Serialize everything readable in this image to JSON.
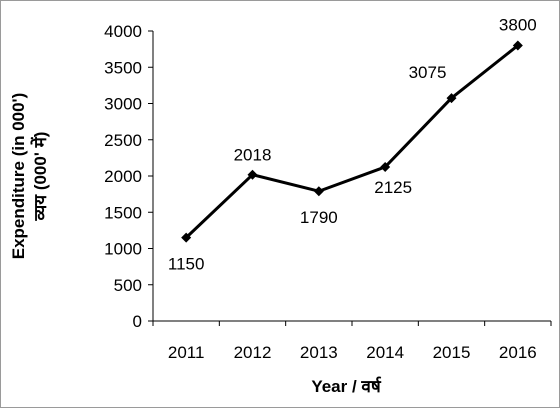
{
  "chart_data": {
    "type": "line",
    "categories": [
      "2011",
      "2012",
      "2013",
      "2014",
      "2015",
      "2016"
    ],
    "series": [
      {
        "values": [
          1150,
          2018,
          1790,
          2125,
          3075,
          3800
        ]
      }
    ],
    "data_labels": [
      "1150",
      "2018",
      "1790",
      "2125",
      "3075",
      "3800"
    ],
    "y_ticks": [
      0,
      500,
      1000,
      1500,
      2000,
      2500,
      3000,
      3500,
      4000
    ],
    "ylim": [
      0,
      4000
    ],
    "xlabel": "Year / वर्ष",
    "ylabel": "Expenditure (in 000')",
    "ylabel_hindi": "व्यय (000' में)",
    "grid": false,
    "legend": "none",
    "line_color": "#000000"
  }
}
